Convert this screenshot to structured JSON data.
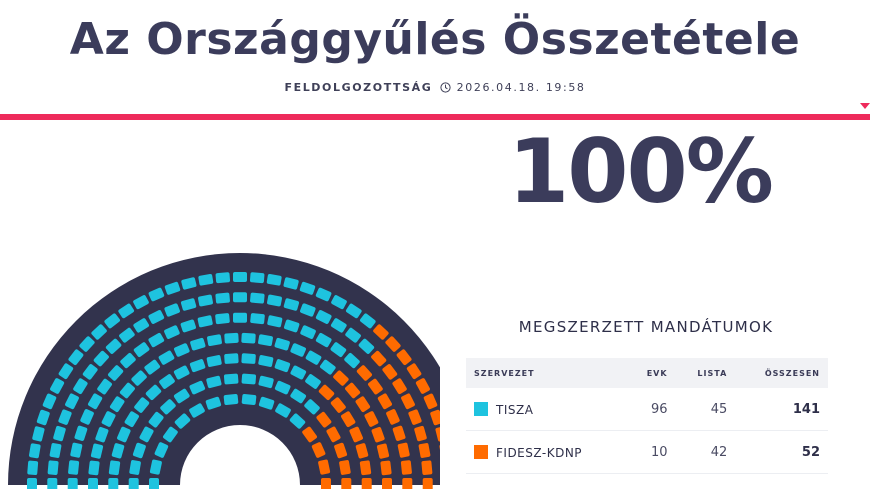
{
  "header": {
    "title": "Az Országgyűlés Összetétele",
    "status_label": "FELDOLGOZOTTSÁG",
    "clock_icon": "clock-icon",
    "timestamp": "2026.04.18. 19:58"
  },
  "progress": {
    "text": "100%",
    "value": 100
  },
  "colors": {
    "accent": "#ee2a5b",
    "arc_background": "#32334d",
    "tisza": "#1ec3df",
    "fidesz": "#ff6b00"
  },
  "results": {
    "heading": "MEGSZERZETT MANDÁTUMOK",
    "columns": [
      "SZERVEZET",
      "EVK",
      "LISTA",
      "ÖSSZESEN"
    ],
    "rows": [
      {
        "name": "TISZA",
        "evk": "96",
        "lista": "45",
        "total": "141",
        "color": "#1ec3df"
      },
      {
        "name": "FIDESZ-KDNP",
        "evk": "10",
        "lista": "42",
        "total": "52",
        "color": "#ff6b00"
      }
    ]
  }
}
